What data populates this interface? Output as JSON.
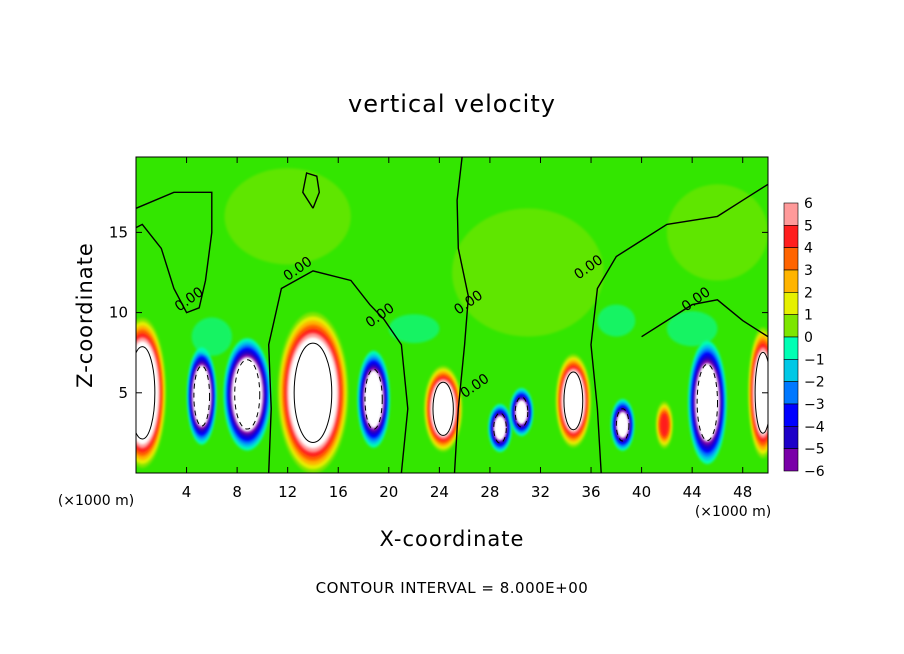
{
  "chart_data": {
    "type": "heatmap",
    "title": "vertical velocity",
    "xlabel": "X-coordinate",
    "ylabel": "Z-coordinate",
    "x_unit_left": "(×1000 m)",
    "x_unit_right": "(×1000 m)",
    "footnote": "CONTOUR INTERVAL = 8.000E+00",
    "xlim": [
      0,
      50
    ],
    "ylim": [
      0,
      19.7
    ],
    "x_ticks": [
      4,
      8,
      12,
      16,
      20,
      24,
      28,
      32,
      36,
      40,
      44,
      48
    ],
    "y_ticks": [
      5,
      10,
      15
    ],
    "colorbar": {
      "min": -6,
      "max": 6,
      "ticks": [
        6,
        5,
        4,
        3,
        2,
        1,
        0,
        -1,
        -2,
        -3,
        -4,
        -5,
        -6
      ]
    },
    "contour_labels": [
      {
        "text": "0.00",
        "x": 4.4,
        "y": 10.6
      },
      {
        "text": "0.00",
        "x": 13.0,
        "y": 12.5
      },
      {
        "text": "0.00",
        "x": 19.5,
        "y": 9.6
      },
      {
        "text": "0.00",
        "x": 26.5,
        "y": 10.4
      },
      {
        "text": "0.00",
        "x": 27.0,
        "y": 5.2
      },
      {
        "text": "0.00",
        "x": 36.0,
        "y": 12.6
      },
      {
        "text": "0.00",
        "x": 44.5,
        "y": 10.6
      }
    ],
    "updrafts": [
      {
        "x": 0.5,
        "z": 5.0,
        "ax": 1.6,
        "az": 4.0,
        "v": 13
      },
      {
        "x": 14.0,
        "z": 5.0,
        "ax": 2.4,
        "az": 4.3,
        "v": 13
      },
      {
        "x": 24.3,
        "z": 4.0,
        "ax": 1.3,
        "az": 2.3,
        "v": 11
      },
      {
        "x": 34.6,
        "z": 4.5,
        "ax": 1.2,
        "az": 2.5,
        "v": 11
      },
      {
        "x": 41.8,
        "z": 3.0,
        "ax": 0.6,
        "az": 1.3,
        "v": 5.0
      },
      {
        "x": 49.6,
        "z": 5.0,
        "ax": 1.0,
        "az": 3.5,
        "v": 11
      }
    ],
    "downdrafts": [
      {
        "x": 5.2,
        "z": 4.8,
        "ax": 1.0,
        "az": 2.6,
        "v": -11
      },
      {
        "x": 8.8,
        "z": 4.9,
        "ax": 1.6,
        "az": 3.0,
        "v": -12
      },
      {
        "x": 18.8,
        "z": 4.6,
        "ax": 1.1,
        "az": 2.6,
        "v": -10
      },
      {
        "x": 28.8,
        "z": 2.8,
        "ax": 0.8,
        "az": 1.3,
        "v": -8
      },
      {
        "x": 30.5,
        "z": 3.8,
        "ax": 0.8,
        "az": 1.3,
        "v": -8
      },
      {
        "x": 38.5,
        "z": 3.0,
        "ax": 0.8,
        "az": 1.4,
        "v": -8
      },
      {
        "x": 45.2,
        "z": 4.4,
        "ax": 1.3,
        "az": 3.3,
        "v": -11
      }
    ]
  }
}
